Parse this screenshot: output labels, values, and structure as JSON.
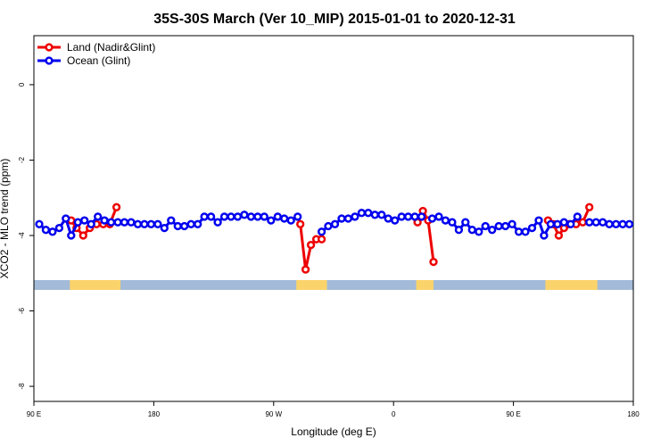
{
  "chart_data": {
    "type": "line",
    "title": "35S-30S March (Ver 10_MIP)   2015-01-01 to 2020-12-31",
    "xlabel": "Longitude (deg E)",
    "ylabel": "XCO2 - MLO trend (ppm)",
    "x_tick_positions": [
      90,
      180,
      270,
      360,
      450,
      540
    ],
    "x_tick_labels": [
      "90 E",
      "180",
      "90 W",
      "0",
      "90 E",
      "180"
    ],
    "xlim": [
      90,
      540
    ],
    "ylim": [
      -8.4,
      1.3
    ],
    "y_ticks": [
      0,
      -2,
      -4,
      -6,
      -8
    ],
    "y_tick_labels": [
      "0",
      "-2",
      "-4",
      "-6",
      "-8"
    ],
    "legend_position": "top-left",
    "series": [
      {
        "name": "Land (Nadir&Glint)",
        "color": "#ee0000",
        "points": [
          [
            [
              118,
              -3.6
            ],
            [
              122,
              -3.8
            ],
            [
              127,
              -4.0
            ],
            [
              132,
              -3.8
            ],
            [
              137,
              -3.7
            ],
            [
              142,
              -3.7
            ],
            [
              147,
              -3.7
            ],
            [
              152,
              -3.25
            ]
          ],
          [
            [
              290,
              -3.7
            ],
            [
              294,
              -4.9
            ],
            [
              298,
              -4.25
            ],
            [
              302,
              -4.1
            ],
            [
              306,
              -4.1
            ]
          ],
          [
            [
              378,
              -3.65
            ],
            [
              382,
              -3.35
            ],
            [
              386,
              -3.6
            ],
            [
              390,
              -4.7
            ]
          ],
          [
            [
              476,
              -3.6
            ],
            [
              480,
              -3.7
            ],
            [
              484,
              -4.0
            ],
            [
              488,
              -3.8
            ],
            [
              492,
              -3.7
            ],
            [
              497,
              -3.7
            ],
            [
              502,
              -3.65
            ],
            [
              507,
              -3.25
            ]
          ]
        ]
      },
      {
        "name": "Ocean (Glint)",
        "color": "#0000ee",
        "points": [
          [
            [
              94,
              -3.7
            ],
            [
              99,
              -3.85
            ],
            [
              104,
              -3.9
            ],
            [
              109,
              -3.8
            ],
            [
              114,
              -3.55
            ],
            [
              118,
              -4.0
            ],
            [
              123,
              -3.65
            ],
            [
              128,
              -3.6
            ],
            [
              133,
              -3.7
            ],
            [
              138,
              -3.5
            ],
            [
              143,
              -3.6
            ],
            [
              148,
              -3.65
            ],
            [
              153,
              -3.65
            ],
            [
              158,
              -3.65
            ],
            [
              163,
              -3.65
            ],
            [
              168,
              -3.7
            ],
            [
              173,
              -3.7
            ],
            [
              178,
              -3.7
            ],
            [
              183,
              -3.7
            ],
            [
              188,
              -3.8
            ],
            [
              193,
              -3.6
            ],
            [
              198,
              -3.75
            ],
            [
              203,
              -3.75
            ],
            [
              208,
              -3.7
            ],
            [
              213,
              -3.7
            ],
            [
              218,
              -3.5
            ],
            [
              223,
              -3.5
            ],
            [
              228,
              -3.65
            ],
            [
              233,
              -3.5
            ],
            [
              238,
              -3.5
            ],
            [
              243,
              -3.5
            ],
            [
              248,
              -3.45
            ],
            [
              253,
              -3.5
            ],
            [
              258,
              -3.5
            ],
            [
              263,
              -3.5
            ],
            [
              268,
              -3.6
            ],
            [
              273,
              -3.5
            ],
            [
              278,
              -3.55
            ],
            [
              283,
              -3.6
            ],
            [
              288,
              -3.5
            ]
          ],
          [
            [
              306,
              -3.9
            ],
            [
              311,
              -3.75
            ],
            [
              316,
              -3.7
            ],
            [
              321,
              -3.55
            ],
            [
              326,
              -3.55
            ],
            [
              331,
              -3.5
            ],
            [
              336,
              -3.4
            ],
            [
              341,
              -3.4
            ],
            [
              346,
              -3.45
            ],
            [
              351,
              -3.45
            ],
            [
              356,
              -3.55
            ],
            [
              361,
              -3.6
            ],
            [
              366,
              -3.5
            ],
            [
              371,
              -3.5
            ],
            [
              376,
              -3.5
            ],
            [
              381,
              -3.5
            ]
          ],
          [
            [
              389,
              -3.55
            ],
            [
              394,
              -3.5
            ],
            [
              399,
              -3.6
            ],
            [
              404,
              -3.65
            ],
            [
              409,
              -3.85
            ],
            [
              414,
              -3.65
            ],
            [
              419,
              -3.85
            ],
            [
              424,
              -3.9
            ],
            [
              429,
              -3.75
            ],
            [
              434,
              -3.85
            ],
            [
              439,
              -3.75
            ],
            [
              444,
              -3.75
            ],
            [
              449,
              -3.7
            ],
            [
              454,
              -3.9
            ],
            [
              459,
              -3.9
            ],
            [
              464,
              -3.8
            ],
            [
              469,
              -3.6
            ],
            [
              473,
              -4.0
            ],
            [
              478,
              -3.7
            ],
            [
              483,
              -3.7
            ],
            [
              488,
              -3.65
            ],
            [
              493,
              -3.7
            ],
            [
              498,
              -3.5
            ]
          ],
          [
            [
              507,
              -3.65
            ],
            [
              512,
              -3.65
            ],
            [
              517,
              -3.65
            ],
            [
              522,
              -3.7
            ],
            [
              527,
              -3.7
            ],
            [
              532,
              -3.7
            ],
            [
              537,
              -3.7
            ]
          ]
        ]
      }
    ],
    "map_strip": {
      "ocean_color": "#a3bbd8",
      "land_color": "#fbd36b",
      "land_segments": [
        [
          117,
          155
        ],
        [
          287,
          310
        ],
        [
          377,
          390
        ],
        [
          474,
          513
        ]
      ]
    }
  }
}
